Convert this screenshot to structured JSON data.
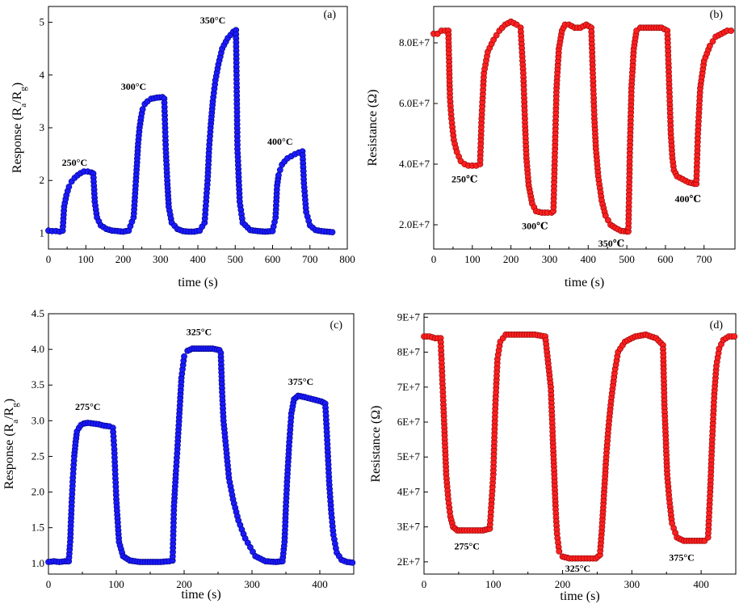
{
  "chart_data": [
    {
      "id": "a",
      "type": "scatter",
      "panel_label": "(a)",
      "xlabel": "time (s)",
      "ylabel": "Response (R",
      "ylabel_sub1": "a",
      "ylabel_mid": "/R",
      "ylabel_sub2": "g",
      "ylabel_end": ")",
      "xlim": [
        0,
        800
      ],
      "ylim": [
        0.7,
        5.3
      ],
      "xticks": [
        0,
        100,
        200,
        300,
        400,
        500,
        600,
        700,
        800
      ],
      "xtick_labels": [
        "0",
        "100",
        "200",
        "300",
        "400",
        "500",
        "600",
        "700",
        "800"
      ],
      "yticks": [
        1,
        2,
        3,
        4,
        5
      ],
      "ytick_labels": [
        "1",
        "2",
        "3",
        "4",
        "5"
      ],
      "marker_color": "#1a1aff",
      "marker_edge": "#00007a",
      "annotations": [
        {
          "text": "250°C",
          "x": 70,
          "y": 2.28
        },
        {
          "text": "300°C",
          "x": 228,
          "y": 3.72
        },
        {
          "text": "350°C",
          "x": 440,
          "y": 4.98
        },
        {
          "text": "400°C",
          "x": 620,
          "y": 2.68
        }
      ],
      "series": [
        {
          "x": [
            0,
            10,
            20,
            30,
            38,
            42,
            48,
            55,
            62,
            70,
            78,
            86,
            95,
            105,
            115,
            120,
            124,
            130,
            140,
            155,
            170,
            185,
            200,
            215,
            228,
            236,
            240,
            244,
            248,
            252,
            258,
            265,
            275,
            290,
            305,
            310,
            314,
            318,
            322,
            330,
            345,
            360,
            375,
            390,
            405,
            418,
            422,
            426,
            430,
            434,
            440,
            447,
            455,
            465,
            480,
            495,
            502,
            506,
            512,
            520,
            540,
            560,
            580,
            600,
            608,
            612,
            616,
            620,
            625,
            632,
            640,
            650,
            660,
            670,
            680,
            684,
            690,
            700,
            715,
            730,
            745,
            760
          ],
          "y": [
            1.05,
            1.04,
            1.04,
            1.03,
            1.05,
            1.5,
            1.72,
            1.88,
            1.98,
            2.05,
            2.1,
            2.14,
            2.17,
            2.17,
            2.15,
            2.13,
            1.6,
            1.3,
            1.15,
            1.08,
            1.05,
            1.04,
            1.03,
            1.05,
            1.3,
            2.2,
            2.7,
            3.0,
            3.2,
            3.35,
            3.45,
            3.5,
            3.55,
            3.57,
            3.58,
            3.55,
            2.6,
            2.0,
            1.5,
            1.2,
            1.08,
            1.04,
            1.03,
            1.03,
            1.05,
            1.2,
            1.6,
            2.0,
            2.6,
            3.0,
            3.5,
            3.9,
            4.2,
            4.5,
            4.7,
            4.82,
            4.85,
            2.6,
            1.6,
            1.2,
            1.06,
            1.04,
            1.03,
            1.04,
            1.3,
            1.9,
            2.1,
            2.2,
            2.3,
            2.36,
            2.42,
            2.46,
            2.5,
            2.53,
            2.55,
            1.95,
            1.4,
            1.15,
            1.06,
            1.04,
            1.03,
            1.02
          ]
        }
      ]
    },
    {
      "id": "b",
      "type": "scatter",
      "panel_label": "(b)",
      "xlabel": "time (s)",
      "ylabel": "Resistance (Ω)",
      "xlim": [
        0,
        780
      ],
      "ylim": [
        12000000,
        92000000
      ],
      "xticks": [
        0,
        100,
        200,
        300,
        400,
        500,
        600,
        700
      ],
      "xtick_labels": [
        "0",
        "100",
        "200",
        "300",
        "400",
        "500",
        "600",
        "700"
      ],
      "yticks": [
        20000000,
        40000000,
        60000000,
        80000000
      ],
      "ytick_labels": [
        "2.0E+7",
        "4.0E+7",
        "6.0E+7",
        "8.0E+7"
      ],
      "marker_color": "#ff2020",
      "marker_edge": "#8a0000",
      "annotations": [
        {
          "text": "250℃",
          "x": 80,
          "y": 34000000
        },
        {
          "text": "300℃",
          "x": 262,
          "y": 18500000
        },
        {
          "text": "350℃",
          "x": 460,
          "y": 12800000
        },
        {
          "text": "400℃",
          "x": 658,
          "y": 27500000
        }
      ],
      "series": [
        {
          "x": [
            0,
            10,
            20,
            30,
            38,
            42,
            46,
            52,
            60,
            70,
            80,
            90,
            100,
            110,
            120,
            124,
            130,
            140,
            155,
            170,
            185,
            200,
            215,
            225,
            232,
            236,
            240,
            246,
            255,
            265,
            280,
            295,
            305,
            310,
            314,
            318,
            324,
            332,
            340,
            350,
            365,
            380,
            395,
            408,
            412,
            416,
            420,
            426,
            435,
            445,
            458,
            470,
            485,
            500,
            504,
            508,
            512,
            518,
            525,
            535,
            550,
            570,
            590,
            605,
            610,
            614,
            618,
            622,
            630,
            645,
            660,
            675,
            680,
            684,
            690,
            700,
            715,
            730,
            745,
            760,
            770
          ],
          "y": [
            83000000,
            83000000,
            84000000,
            84000000,
            84000000,
            62000000,
            55000000,
            48000000,
            44000000,
            41000000,
            40000000,
            39500000,
            39500000,
            39500000,
            40000000,
            55000000,
            70000000,
            77000000,
            81000000,
            84000000,
            86000000,
            87000000,
            86000000,
            85000000,
            70000000,
            55000000,
            42000000,
            33000000,
            27000000,
            24500000,
            24000000,
            24000000,
            24000000,
            24500000,
            45000000,
            65000000,
            78000000,
            84000000,
            86000000,
            86000000,
            85000000,
            85000000,
            86000000,
            85000000,
            70000000,
            55000000,
            45000000,
            36000000,
            28000000,
            23000000,
            20000000,
            19000000,
            18000000,
            17800000,
            17800000,
            45000000,
            65000000,
            78000000,
            84000000,
            85000000,
            85000000,
            85000000,
            85000000,
            84000000,
            65000000,
            50000000,
            42000000,
            38000000,
            36000000,
            35000000,
            34000000,
            33500000,
            33500000,
            50000000,
            65000000,
            74000000,
            79000000,
            82000000,
            83000000,
            84000000,
            84000000
          ]
        }
      ]
    },
    {
      "id": "c",
      "type": "scatter",
      "panel_label": "(c)",
      "xlabel": "time (s)",
      "ylabel": "Response (R",
      "ylabel_sub1": "a",
      "ylabel_mid": "/R",
      "ylabel_sub2": "g",
      "ylabel_end": ")",
      "xlim": [
        0,
        450
      ],
      "ylim": [
        0.85,
        4.5
      ],
      "xticks": [
        0,
        100,
        200,
        300,
        400
      ],
      "xtick_labels": [
        "0",
        "100",
        "200",
        "300",
        "400"
      ],
      "yticks": [
        1.0,
        1.5,
        2.0,
        2.5,
        3.0,
        3.5,
        4.0,
        4.5
      ],
      "ytick_labels": [
        "1.0",
        "1.5",
        "2.0",
        "2.5",
        "3.0",
        "3.5",
        "4.0",
        "4.5"
      ],
      "marker_color": "#1a1aff",
      "marker_edge": "#00007a",
      "annotations": [
        {
          "text": "275°C",
          "x": 58,
          "y": 3.15
        },
        {
          "text": "325°C",
          "x": 222,
          "y": 4.2
        },
        {
          "text": "375°C",
          "x": 372,
          "y": 3.5
        }
      ],
      "series": [
        {
          "x": [
            0,
            8,
            16,
            24,
            30,
            32,
            34,
            36,
            38,
            40,
            42,
            45,
            48,
            52,
            58,
            66,
            74,
            82,
            90,
            95,
            97,
            100,
            104,
            110,
            120,
            135,
            150,
            165,
            178,
            183,
            185,
            188,
            190,
            193,
            196,
            200,
            205,
            212,
            222,
            232,
            242,
            252,
            254,
            256,
            258,
            262,
            266,
            272,
            280,
            290,
            305,
            320,
            335,
            345,
            348,
            350,
            352,
            355,
            358,
            362,
            368,
            378,
            390,
            402,
            408,
            410,
            412,
            414,
            417,
            420,
            425,
            432,
            440,
            448
          ],
          "y": [
            1.02,
            1.03,
            1.02,
            1.03,
            1.03,
            1.3,
            1.8,
            2.2,
            2.5,
            2.7,
            2.85,
            2.9,
            2.94,
            2.96,
            2.97,
            2.96,
            2.95,
            2.93,
            2.92,
            2.9,
            2.6,
            1.9,
            1.3,
            1.1,
            1.04,
            1.02,
            1.02,
            1.02,
            1.03,
            1.04,
            1.8,
            2.3,
            2.6,
            3.1,
            3.6,
            3.9,
            3.98,
            4.01,
            4.01,
            4.01,
            4.01,
            3.99,
            3.95,
            3.4,
            3.0,
            2.6,
            2.2,
            1.9,
            1.6,
            1.35,
            1.1,
            1.03,
            1.02,
            1.03,
            1.3,
            1.8,
            2.2,
            2.7,
            3.1,
            3.3,
            3.35,
            3.33,
            3.3,
            3.27,
            3.24,
            2.9,
            2.5,
            2.1,
            1.7,
            1.4,
            1.15,
            1.05,
            1.02,
            1.01
          ]
        }
      ]
    },
    {
      "id": "d",
      "type": "scatter",
      "panel_label": "(d)",
      "xlabel": "time (s)",
      "ylabel": "Resistance (Ω)",
      "xlim": [
        0,
        450
      ],
      "ylim": [
        16500000,
        91000000
      ],
      "xticks": [
        0,
        100,
        200,
        300,
        400
      ],
      "xtick_labels": [
        "0",
        "100",
        "200",
        "300",
        "400"
      ],
      "yticks": [
        20000000,
        30000000,
        40000000,
        50000000,
        60000000,
        70000000,
        80000000,
        90000000
      ],
      "ytick_labels": [
        "2E+7",
        "3E+7",
        "4E+7",
        "5E+7",
        "6E+7",
        "7E+7",
        "8E+7",
        "9E+7"
      ],
      "marker_color": "#ff2020",
      "marker_edge": "#8a0000",
      "annotations": [
        {
          "text": "275°C",
          "x": 62,
          "y": 23500000
        },
        {
          "text": "325°C",
          "x": 222,
          "y": 17200000
        },
        {
          "text": "375°C",
          "x": 372,
          "y": 20300000
        }
      ],
      "series": [
        {
          "x": [
            0,
            8,
            16,
            24,
            28,
            30,
            32,
            35,
            38,
            42,
            48,
            58,
            70,
            85,
            95,
            100,
            103,
            106,
            110,
            118,
            130,
            145,
            160,
            175,
            183,
            186,
            188,
            190,
            192,
            195,
            200,
            210,
            222,
            235,
            248,
            254,
            257,
            260,
            263,
            266,
            270,
            275,
            280,
            290,
            305,
            320,
            335,
            345,
            347,
            349,
            351,
            354,
            358,
            365,
            375,
            390,
            405,
            410,
            413,
            416,
            419,
            422,
            426,
            432,
            440,
            448
          ],
          "y": [
            84500000,
            84500000,
            84000000,
            84000000,
            65000000,
            55000000,
            45000000,
            38000000,
            33000000,
            30000000,
            29000000,
            29000000,
            29000000,
            29000000,
            29500000,
            45000000,
            65000000,
            78000000,
            83000000,
            85000000,
            85000000,
            85000000,
            85000000,
            84500000,
            70000000,
            55000000,
            45000000,
            35000000,
            28000000,
            23000000,
            21500000,
            21000000,
            21000000,
            21000000,
            21000000,
            22000000,
            30000000,
            40000000,
            50000000,
            58000000,
            66000000,
            74000000,
            80000000,
            83000000,
            84500000,
            85000000,
            84000000,
            82000000,
            65000000,
            55000000,
            45000000,
            38000000,
            31000000,
            27000000,
            26000000,
            26000000,
            26000000,
            27000000,
            40000000,
            55000000,
            68000000,
            76000000,
            81000000,
            83500000,
            84500000,
            84500000
          ]
        }
      ]
    }
  ]
}
